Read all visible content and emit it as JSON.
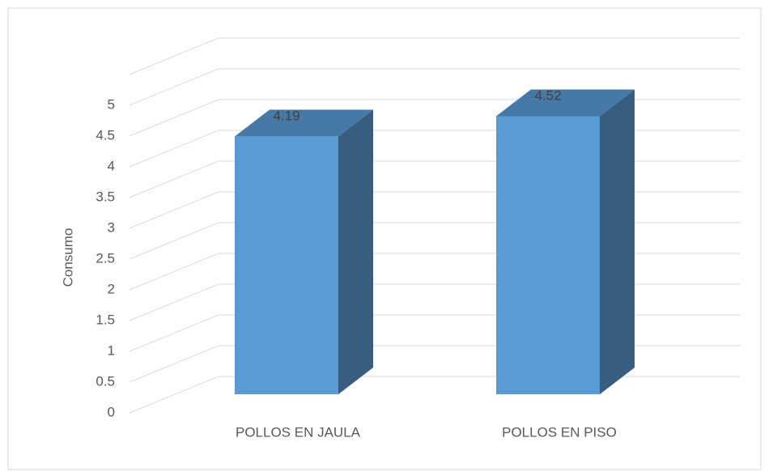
{
  "chart_data": {
    "type": "bar3d",
    "y_label": "Consumo",
    "categories": [
      "POLLOS EN JAULA",
      "POLLOS EN PISO"
    ],
    "values": [
      4.19,
      4.52
    ],
    "color": "#5b9bd5",
    "ylim": [
      0,
      5.5
    ],
    "yticks": [
      0,
      0.5,
      1,
      1.5,
      2,
      2.5,
      3,
      3.5,
      4,
      4.5,
      5
    ],
    "grid": true
  }
}
